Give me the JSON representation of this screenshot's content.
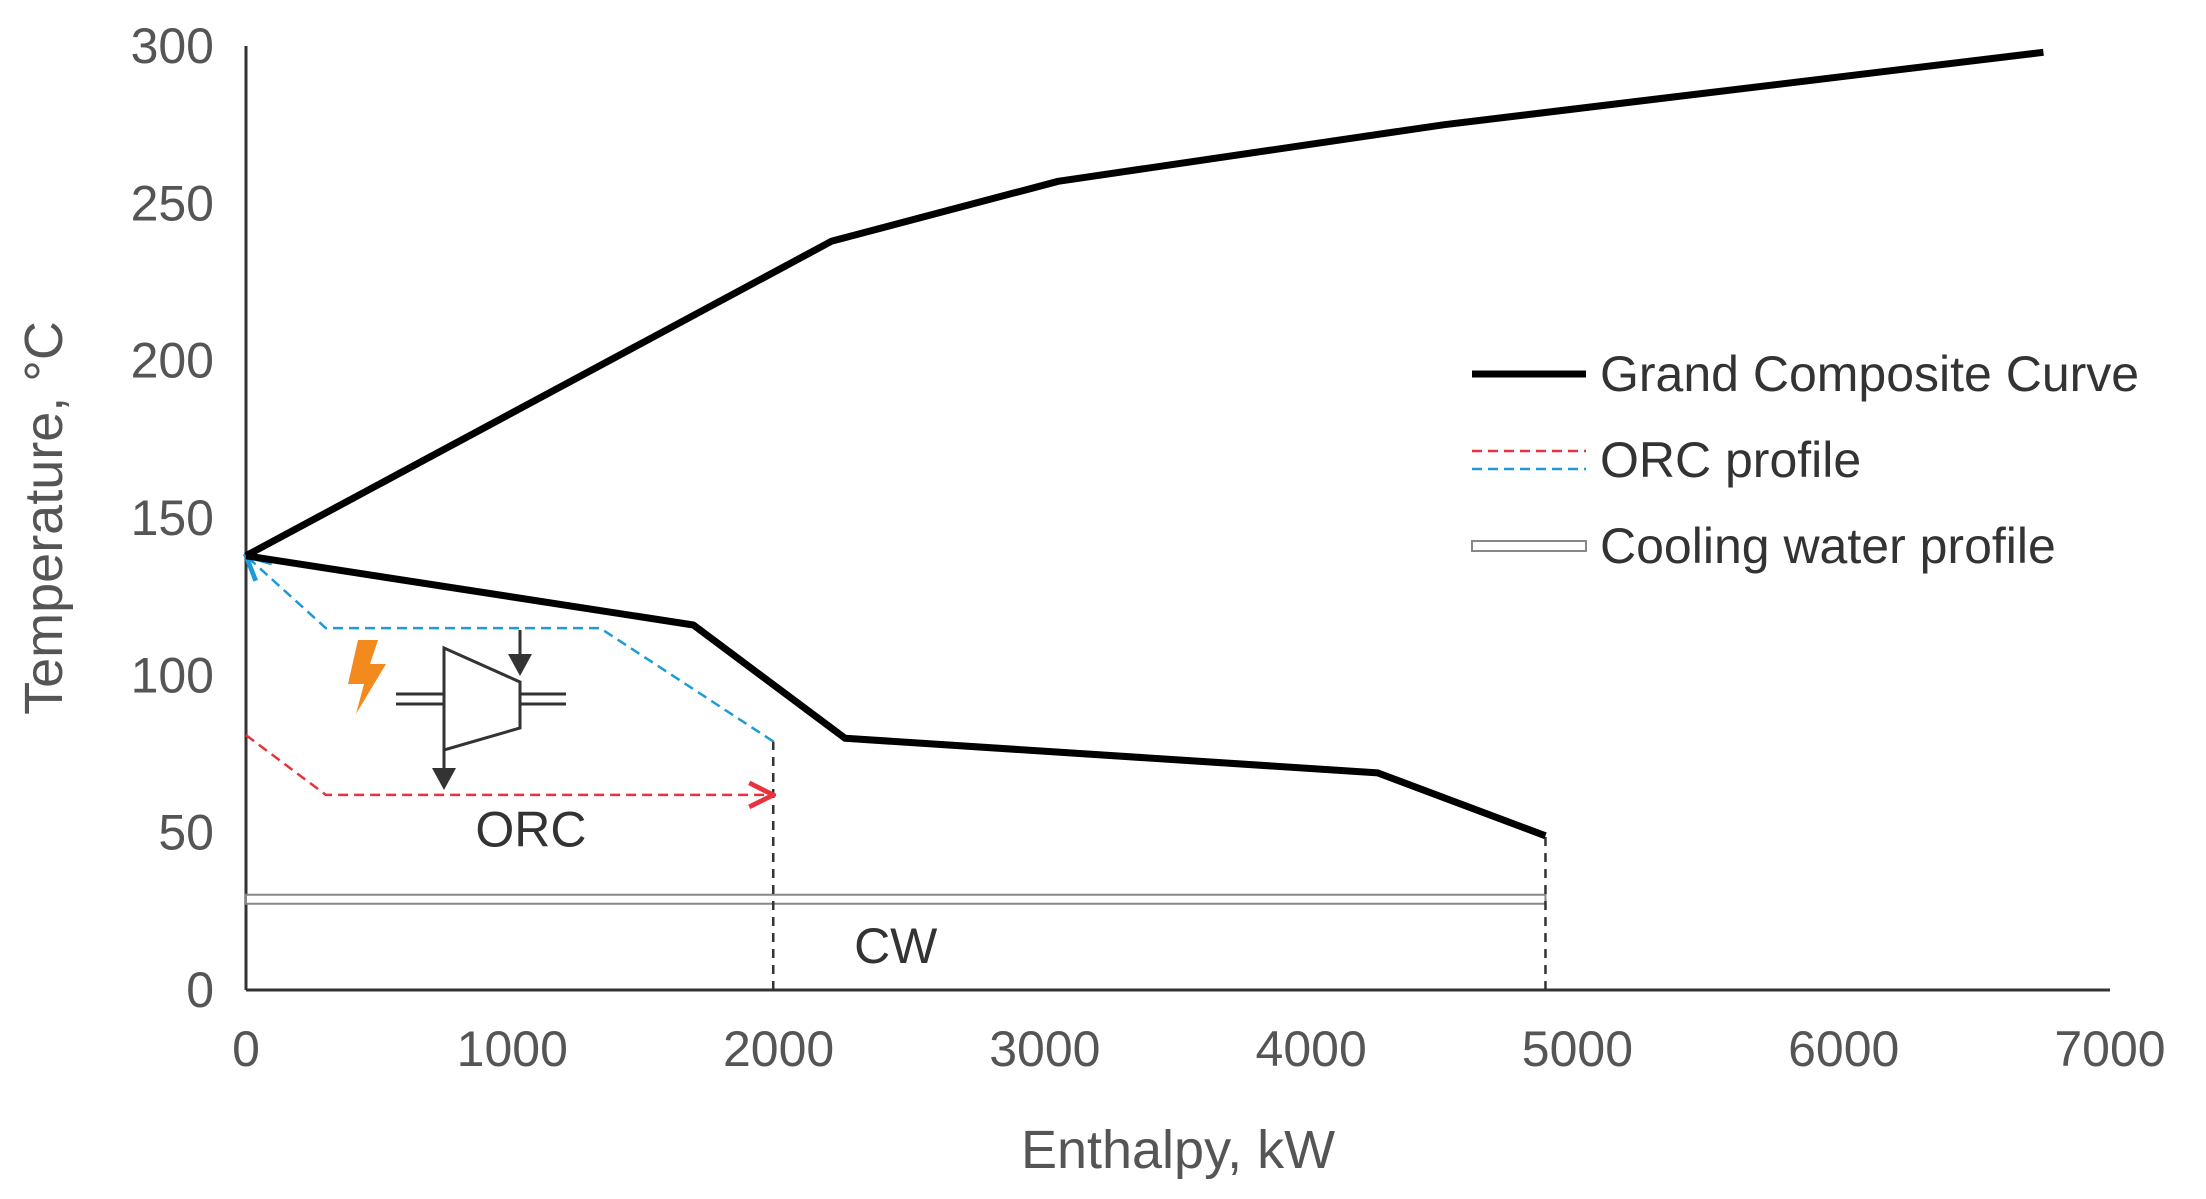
{
  "chart_data": {
    "type": "line",
    "title": "",
    "xlabel": "Enthalpy, kW",
    "ylabel": "Temperature, °C",
    "xlim": [
      0,
      7000
    ],
    "ylim": [
      0,
      300
    ],
    "x_ticks": [
      0,
      1000,
      2000,
      3000,
      4000,
      5000,
      6000,
      7000
    ],
    "y_ticks": [
      0,
      50,
      100,
      150,
      200,
      250,
      300
    ],
    "grid": false,
    "legend_position": "right",
    "legend": [
      {
        "key": "gcc",
        "label": "Grand Composite Curve",
        "style": "solid-thick",
        "colors": [
          "#000000"
        ]
      },
      {
        "key": "orc",
        "label": "ORC profile",
        "style": "dashed-pair",
        "colors": [
          "#e8323c",
          "#1e9bd7"
        ]
      },
      {
        "key": "cw",
        "label": "Cooling water profile",
        "style": "hollow-bar",
        "colors": [
          "#888888"
        ]
      }
    ],
    "series": [
      {
        "name": "Grand Composite Curve (upper)",
        "color": "#000000",
        "points": [
          [
            0,
            138
          ],
          [
            2200,
            238
          ],
          [
            3050,
            257
          ],
          [
            4500,
            275
          ],
          [
            6750,
            298
          ]
        ]
      },
      {
        "name": "Grand Composite Curve (lower)",
        "color": "#000000",
        "points": [
          [
            0,
            138
          ],
          [
            1680,
            116
          ],
          [
            2250,
            80
          ],
          [
            4250,
            69
          ],
          [
            4880,
            49
          ]
        ]
      },
      {
        "name": "ORC profile (heating)",
        "color": "#e8323c",
        "points": [
          [
            0,
            81
          ],
          [
            300,
            62
          ],
          [
            1980,
            62
          ]
        ]
      },
      {
        "name": "ORC profile (cooling)",
        "color": "#1e9bd7",
        "points": [
          [
            1980,
            79
          ],
          [
            1330,
            115
          ],
          [
            300,
            115
          ],
          [
            0,
            138
          ]
        ]
      },
      {
        "name": "Cooling water profile",
        "color": "#888888",
        "x_range": [
          0,
          4880
        ],
        "y": 29
      }
    ],
    "guide_lines": [
      {
        "x": 1980,
        "y_from": 0,
        "y_to": 79
      },
      {
        "x": 4880,
        "y_from": 0,
        "y_to": 49
      }
    ],
    "annotations": [
      {
        "text": "ORC",
        "x": 1070,
        "y": 51
      },
      {
        "text": "CW",
        "x": 2440,
        "y": 14
      }
    ]
  }
}
